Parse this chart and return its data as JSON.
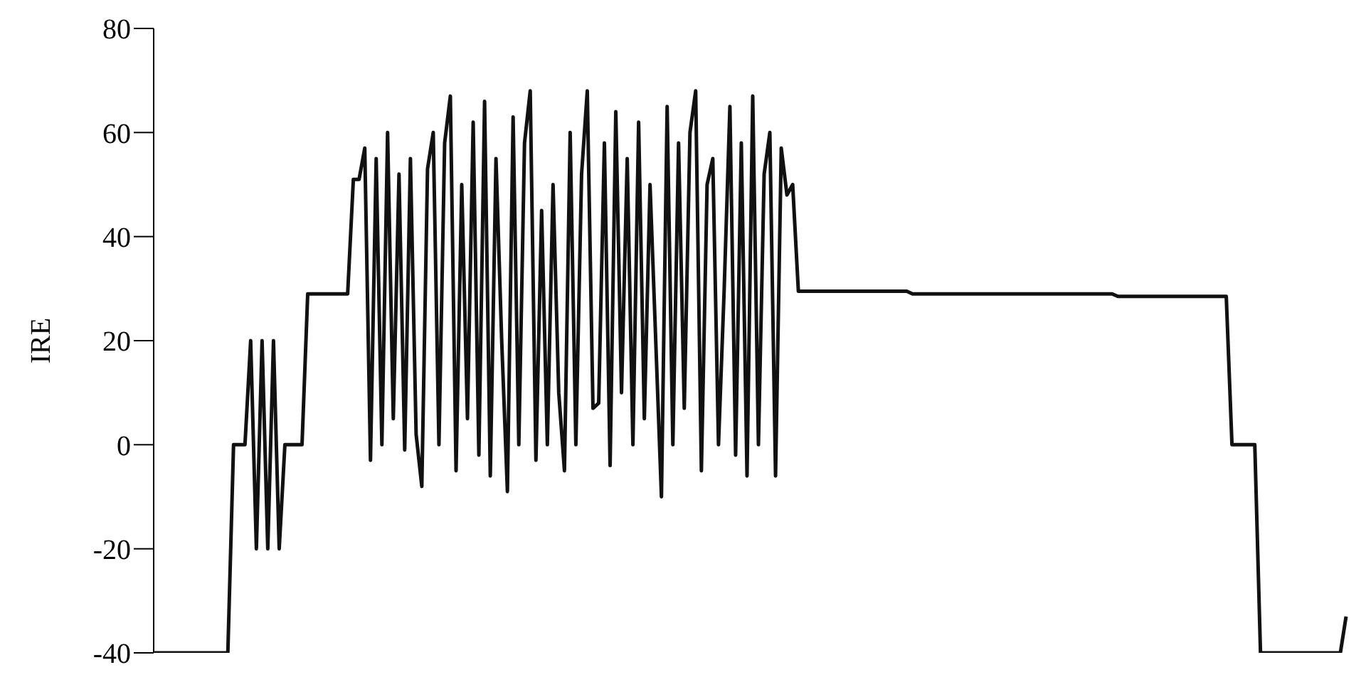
{
  "chart_data": {
    "type": "line",
    "ylabel": "IRE",
    "ylim": [
      -40,
      80
    ],
    "yticks": [
      -40,
      -20,
      0,
      20,
      40,
      60,
      80
    ],
    "grid": false,
    "marker": "none",
    "line_style": "solid",
    "tick_labels": "y",
    "categories": [
      null,
      null,
      null,
      null,
      null,
      null,
      null,
      null,
      null,
      null,
      null,
      null,
      null,
      null,
      null,
      null,
      null,
      null,
      null,
      null,
      null,
      null,
      null,
      null,
      null,
      null,
      null,
      null,
      null,
      null,
      null,
      null,
      null,
      null,
      null,
      null,
      null,
      null,
      null,
      null,
      null,
      null,
      null,
      null,
      null,
      null,
      null,
      null,
      null,
      null,
      null,
      null,
      null,
      null,
      null,
      null,
      null,
      null,
      null,
      null,
      null,
      null,
      null,
      null,
      null,
      null,
      null,
      null,
      null,
      null,
      null,
      null,
      null,
      null,
      null,
      null,
      null,
      null,
      null,
      null,
      null,
      null,
      null,
      null,
      null,
      null,
      null,
      null,
      null,
      null,
      null,
      null,
      null,
      null,
      null,
      null,
      null,
      null,
      null,
      null,
      null,
      null,
      null,
      null,
      null,
      null,
      null,
      null,
      null,
      null,
      null,
      null,
      null,
      null,
      null,
      null,
      null,
      null,
      null,
      null,
      null,
      null,
      null,
      null,
      null,
      null,
      null,
      null,
      null,
      null,
      null,
      null,
      null,
      null,
      null,
      null,
      null,
      null,
      null,
      null,
      null,
      null,
      null,
      null,
      null,
      null,
      null,
      null,
      null,
      null,
      null,
      null,
      null,
      null,
      null,
      null,
      null,
      null,
      null,
      null,
      null,
      null,
      null,
      null,
      null,
      null,
      null,
      null,
      null,
      null,
      null,
      null,
      null,
      null,
      null,
      null,
      null,
      null,
      null,
      null,
      null,
      null,
      null,
      null,
      null,
      null,
      null,
      null,
      null,
      null,
      null,
      null,
      null,
      null,
      null,
      null,
      null,
      null,
      null,
      null,
      null,
      null,
      null,
      null,
      null,
      null,
      null,
      null,
      null,
      null
    ],
    "series": [
      {
        "color": "#111111",
        "values": [
          -40,
          -40,
          -40,
          -40,
          -40,
          -40,
          -40,
          -40,
          -40,
          -40,
          -40,
          -40,
          -40,
          -40,
          0,
          0,
          0,
          20,
          -20,
          20,
          -20,
          20,
          -20,
          0,
          0,
          0,
          0,
          29,
          29,
          29,
          29,
          29,
          29,
          29,
          29,
          51,
          51,
          57,
          -3,
          55,
          0,
          60,
          5,
          52,
          -1,
          55,
          2,
          -8,
          53,
          60,
          0,
          58,
          67,
          -5,
          50,
          5,
          62,
          -2,
          66,
          -6,
          55,
          20,
          -9,
          63,
          0,
          58,
          68,
          -3,
          45,
          0,
          50,
          10,
          -5,
          60,
          0,
          52,
          68,
          7,
          8,
          58,
          -4,
          64,
          10,
          55,
          0,
          62,
          5,
          50,
          20,
          -10,
          65,
          0,
          58,
          7,
          60,
          68,
          -5,
          50,
          55,
          0,
          30,
          65,
          -2,
          58,
          -6,
          67,
          0,
          52,
          60,
          -6,
          57,
          48,
          50,
          29.5,
          29.5,
          29.5,
          29.5,
          29.5,
          29.5,
          29.5,
          29.5,
          29.5,
          29.5,
          29.5,
          29.5,
          29.5,
          29.5,
          29.5,
          29.5,
          29.5,
          29.5,
          29.5,
          29.5,
          29,
          29,
          29,
          29,
          29,
          29,
          29,
          29,
          29,
          29,
          29,
          29,
          29,
          29,
          29,
          29,
          29,
          29,
          29,
          29,
          29,
          29,
          29,
          29,
          29,
          29,
          29,
          29,
          29,
          29,
          29,
          29,
          29,
          29,
          29,
          29,
          28.5,
          28.5,
          28.5,
          28.5,
          28.5,
          28.5,
          28.5,
          28.5,
          28.5,
          28.5,
          28.5,
          28.5,
          28.5,
          28.5,
          28.5,
          28.5,
          28.5,
          28.5,
          28.5,
          28.5,
          0,
          0,
          0,
          0,
          0,
          -40,
          -40,
          -40,
          -40,
          -40,
          -40,
          -40,
          -40,
          -40,
          -40,
          -40,
          -40,
          -40,
          -40,
          -40,
          -33
        ]
      }
    ]
  }
}
